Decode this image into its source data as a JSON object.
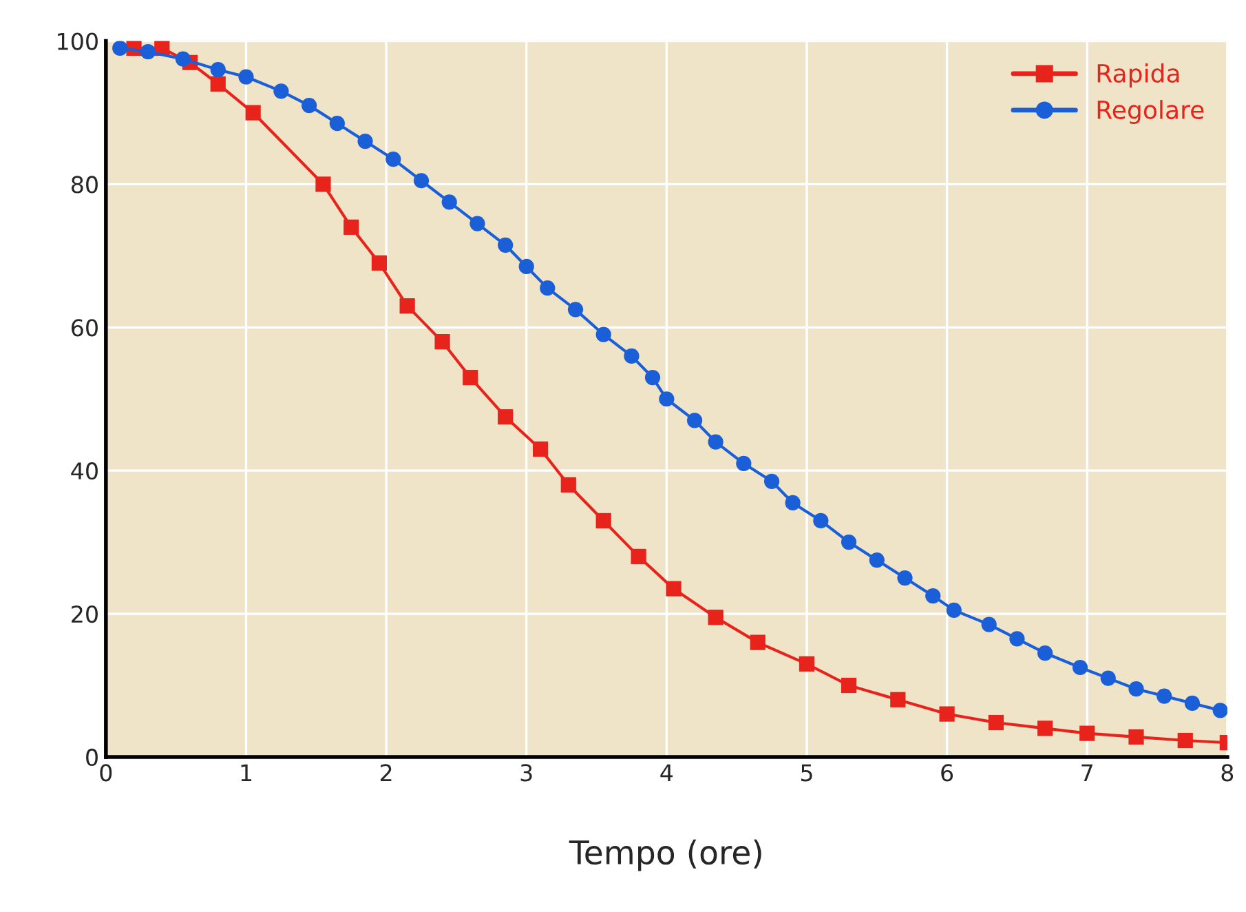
{
  "chart_data": {
    "type": "line",
    "xlabel": "Tempo (ore)",
    "xlim": [
      0,
      8
    ],
    "ylim": [
      0,
      100
    ],
    "xticks": [
      0,
      1,
      2,
      3,
      4,
      5,
      6,
      7,
      8
    ],
    "yticks": [
      0,
      20,
      40,
      60,
      80,
      100
    ],
    "grid": true,
    "legend": "top right",
    "line_style": "solid",
    "series": [
      {
        "name": "Rapida",
        "color": "#e8231c",
        "marker": "square",
        "x": [
          0.2,
          0.4,
          0.6,
          0.8,
          1.05,
          1.55,
          1.75,
          1.95,
          2.15,
          2.4,
          2.6,
          2.85,
          3.1,
          3.3,
          3.55,
          3.8,
          4.05,
          4.35,
          4.65,
          5.0,
          5.3,
          5.65,
          6.0,
          6.35,
          6.7,
          7.0,
          7.35,
          7.7,
          8.0
        ],
        "values": [
          99,
          99,
          97,
          94,
          90,
          80,
          74,
          69,
          63,
          58,
          53,
          47.5,
          43,
          38,
          33,
          28,
          23.5,
          19.5,
          16,
          13,
          10,
          8,
          6,
          4.8,
          4,
          3.3,
          2.8,
          2.3,
          2
        ]
      },
      {
        "name": "Regolare",
        "color": "#1a5fd8",
        "marker": "circle",
        "x": [
          0.1,
          0.3,
          0.55,
          0.8,
          1.0,
          1.25,
          1.45,
          1.65,
          1.85,
          2.05,
          2.25,
          2.45,
          2.65,
          2.85,
          3.0,
          3.15,
          3.35,
          3.55,
          3.75,
          3.9,
          4.0,
          4.2,
          4.35,
          4.55,
          4.75,
          4.9,
          5.1,
          5.3,
          5.5,
          5.7,
          5.9,
          6.05,
          6.3,
          6.5,
          6.7,
          6.95,
          7.15,
          7.35,
          7.55,
          7.75,
          7.95
        ],
        "values": [
          99,
          98.5,
          97.5,
          96,
          95,
          93,
          91,
          88.5,
          86,
          83.5,
          80.5,
          77.5,
          74.5,
          71.5,
          68.5,
          65.5,
          62.5,
          59,
          56,
          53,
          50,
          47,
          44,
          41,
          38.5,
          35.5,
          33,
          30,
          27.5,
          25,
          22.5,
          20.5,
          18.5,
          16.5,
          14.5,
          12.5,
          11,
          9.5,
          8.5,
          7.5,
          6.5
        ]
      }
    ]
  }
}
